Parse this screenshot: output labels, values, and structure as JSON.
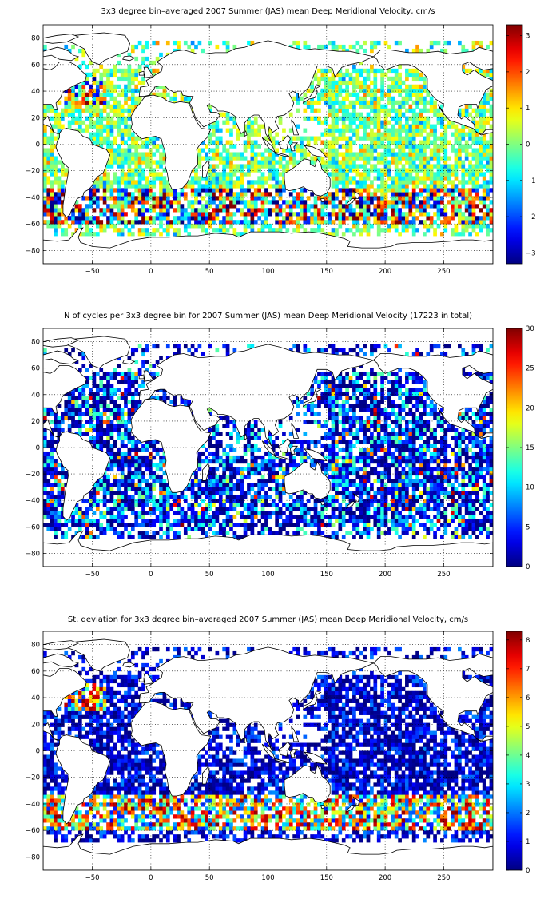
{
  "chart_data": [
    {
      "type": "heatmap",
      "title": "3x3 degree bin–averaged 2007 Summer (JAS) mean Deep Meridional Velocity, cm/s",
      "xlabel": "",
      "ylabel": "",
      "xlim": [
        -92,
        292
      ],
      "ylim": [
        -90,
        90
      ],
      "bin_size_deg": 3,
      "colormap": "jet",
      "color_range": [
        -3.3,
        3.3
      ],
      "x_ticks": [
        -50,
        0,
        50,
        100,
        150,
        200,
        250
      ],
      "y_ticks": [
        -80,
        -60,
        -40,
        -20,
        0,
        20,
        40,
        60,
        80
      ],
      "colorbar_ticks": [
        -3,
        -2,
        -1,
        0,
        1,
        2,
        3
      ],
      "grid": "dotted",
      "coastlines": true
    },
    {
      "type": "heatmap",
      "title": "N of cycles per 3x3 degree bin for 2007 Summer (JAS) mean Deep Meridional Velocity (17223 in total)",
      "xlabel": "",
      "ylabel": "",
      "xlim": [
        -92,
        292
      ],
      "ylim": [
        -90,
        90
      ],
      "bin_size_deg": 3,
      "colormap": "jet",
      "color_range": [
        0,
        30
      ],
      "x_ticks": [
        -50,
        0,
        50,
        100,
        150,
        200,
        250
      ],
      "y_ticks": [
        -80,
        -60,
        -40,
        -20,
        0,
        20,
        40,
        60,
        80
      ],
      "colorbar_ticks": [
        0,
        5,
        10,
        15,
        20,
        25,
        30
      ],
      "grid": "dotted",
      "coastlines": true
    },
    {
      "type": "heatmap",
      "title": "St. deviation for 3x3 degree bin–averaged 2007 Summer (JAS) mean Deep Meridional Velocity, cm/s",
      "xlabel": "",
      "ylabel": "",
      "xlim": [
        -92,
        292
      ],
      "ylim": [
        -90,
        90
      ],
      "bin_size_deg": 3,
      "colormap": "jet",
      "color_range": [
        0,
        8.3
      ],
      "x_ticks": [
        -50,
        0,
        50,
        100,
        150,
        200,
        250
      ],
      "y_ticks": [
        -80,
        -60,
        -40,
        -20,
        0,
        20,
        40,
        60,
        80
      ],
      "colorbar_ticks": [
        0,
        1,
        2,
        3,
        4,
        5,
        6,
        7,
        8
      ],
      "grid": "dotted",
      "coastlines": true
    }
  ]
}
